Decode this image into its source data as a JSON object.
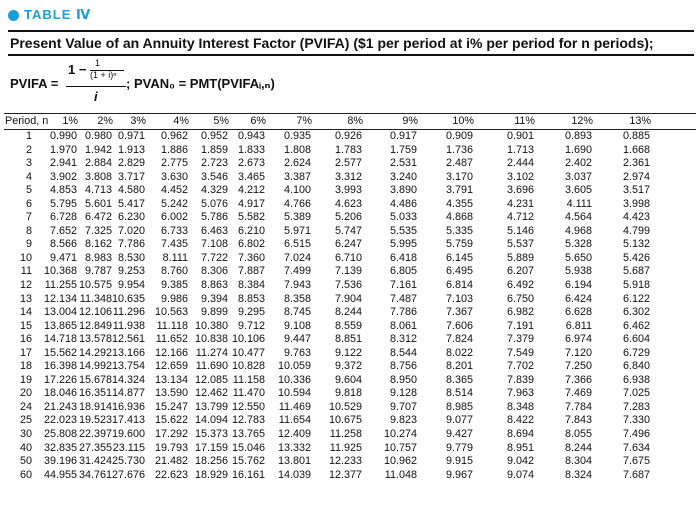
{
  "header": {
    "table_label": "TABLE Ⅳ"
  },
  "title": "Present Value of an Annuity Interest Factor (PVIFA) ($1 per period at i% per period for n periods);",
  "formula": {
    "lhs": "PVIFA =",
    "num_one": "1 −",
    "num_inner_num": "1",
    "num_inner_den": "(1 + i)ⁿ",
    "den": "i",
    "rest": "; PVAN₀ = PMT(PVIFAᵢ,ₙ)"
  },
  "table": {
    "headers": [
      "Period, n",
      "1%",
      "2%",
      "3%",
      "4%",
      "5%",
      "6%",
      "7%",
      "8%",
      "9%",
      "10%",
      "11%",
      "12%",
      "13%"
    ],
    "rows": [
      [
        "1",
        "0.990",
        "0.980",
        "0.971",
        "0.962",
        "0.952",
        "0.943",
        "0.935",
        "0.926",
        "0.917",
        "0.909",
        "0.901",
        "0.893",
        "0.885"
      ],
      [
        "2",
        "1.970",
        "1.942",
        "1.913",
        "1.886",
        "1.859",
        "1.833",
        "1.808",
        "1.783",
        "1.759",
        "1.736",
        "1.713",
        "1.690",
        "1.668"
      ],
      [
        "3",
        "2.941",
        "2.884",
        "2.829",
        "2.775",
        "2.723",
        "2.673",
        "2.624",
        "2.577",
        "2.531",
        "2.487",
        "2.444",
        "2.402",
        "2.361"
      ],
      [
        "4",
        "3.902",
        "3.808",
        "3.717",
        "3.630",
        "3.546",
        "3.465",
        "3.387",
        "3.312",
        "3.240",
        "3.170",
        "3.102",
        "3.037",
        "2.974"
      ],
      [
        "5",
        "4.853",
        "4.713",
        "4.580",
        "4.452",
        "4.329",
        "4.212",
        "4.100",
        "3.993",
        "3.890",
        "3.791",
        "3.696",
        "3.605",
        "3.517"
      ],
      [
        "6",
        "5.795",
        "5.601",
        "5.417",
        "5.242",
        "5.076",
        "4.917",
        "4.766",
        "4.623",
        "4.486",
        "4.355",
        "4.231",
        "4.111",
        "3.998"
      ],
      [
        "7",
        "6.728",
        "6.472",
        "6.230",
        "6.002",
        "5.786",
        "5.582",
        "5.389",
        "5.206",
        "5.033",
        "4.868",
        "4.712",
        "4.564",
        "4.423"
      ],
      [
        "8",
        "7.652",
        "7.325",
        "7.020",
        "6.733",
        "6.463",
        "6.210",
        "5.971",
        "5.747",
        "5.535",
        "5.335",
        "5.146",
        "4.968",
        "4.799"
      ],
      [
        "9",
        "8.566",
        "8.162",
        "7.786",
        "7.435",
        "7.108",
        "6.802",
        "6.515",
        "6.247",
        "5.995",
        "5.759",
        "5.537",
        "5.328",
        "5.132"
      ],
      [
        "10",
        "9.471",
        "8.983",
        "8.530",
        "8.111",
        "7.722",
        "7.360",
        "7.024",
        "6.710",
        "6.418",
        "6.145",
        "5.889",
        "5.650",
        "5.426"
      ],
      [
        "11",
        "10.368",
        "9.787",
        "9.253",
        "8.760",
        "8.306",
        "7.887",
        "7.499",
        "7.139",
        "6.805",
        "6.495",
        "6.207",
        "5.938",
        "5.687"
      ],
      [
        "12",
        "11.255",
        "10.575",
        "9.954",
        "9.385",
        "8.863",
        "8.384",
        "7.943",
        "7.536",
        "7.161",
        "6.814",
        "6.492",
        "6.194",
        "5.918"
      ],
      [
        "13",
        "12.134",
        "11.348",
        "10.635",
        "9.986",
        "9.394",
        "8.853",
        "8.358",
        "7.904",
        "7.487",
        "7.103",
        "6.750",
        "6.424",
        "6.122"
      ],
      [
        "14",
        "13.004",
        "12.106",
        "11.296",
        "10.563",
        "9.899",
        "9.295",
        "8.745",
        "8.244",
        "7.786",
        "7.367",
        "6.982",
        "6.628",
        "6.302"
      ],
      [
        "15",
        "13.865",
        "12.849",
        "11.938",
        "11.118",
        "10.380",
        "9.712",
        "9.108",
        "8.559",
        "8.061",
        "7.606",
        "7.191",
        "6.811",
        "6.462"
      ],
      [
        "16",
        "14.718",
        "13.578",
        "12.561",
        "11.652",
        "10.838",
        "10.106",
        "9.447",
        "8.851",
        "8.312",
        "7.824",
        "7.379",
        "6.974",
        "6.604"
      ],
      [
        "17",
        "15.562",
        "14.292",
        "13.166",
        "12.166",
        "11.274",
        "10.477",
        "9.763",
        "9.122",
        "8.544",
        "8.022",
        "7.549",
        "7.120",
        "6.729"
      ],
      [
        "18",
        "16.398",
        "14.992",
        "13.754",
        "12.659",
        "11.690",
        "10.828",
        "10.059",
        "9.372",
        "8.756",
        "8.201",
        "7.702",
        "7.250",
        "6.840"
      ],
      [
        "19",
        "17.226",
        "15.678",
        "14.324",
        "13.134",
        "12.085",
        "11.158",
        "10.336",
        "9.604",
        "8.950",
        "8.365",
        "7.839",
        "7.366",
        "6.938"
      ],
      [
        "20",
        "18.046",
        "16.351",
        "14.877",
        "13.590",
        "12.462",
        "11.470",
        "10.594",
        "9.818",
        "9.128",
        "8.514",
        "7.963",
        "7.469",
        "7.025"
      ],
      [
        "24",
        "21.243",
        "18.914",
        "16.936",
        "15.247",
        "13.799",
        "12.550",
        "11.469",
        "10.529",
        "9.707",
        "8.985",
        "8.348",
        "7.784",
        "7.283"
      ],
      [
        "25",
        "22.023",
        "19.523",
        "17.413",
        "15.622",
        "14.094",
        "12.783",
        "11.654",
        "10.675",
        "9.823",
        "9.077",
        "8.422",
        "7.843",
        "7.330"
      ],
      [
        "30",
        "25.808",
        "22.397",
        "19.600",
        "17.292",
        "15.373",
        "13.765",
        "12.409",
        "11.258",
        "10.274",
        "9.427",
        "8.694",
        "8.055",
        "7.496"
      ],
      [
        "40",
        "32.835",
        "27.355",
        "23.115",
        "19.793",
        "17.159",
        "15.046",
        "13.332",
        "11.925",
        "10.757",
        "9.779",
        "8.951",
        "8.244",
        "7.634"
      ],
      [
        "50",
        "39.196",
        "31.424",
        "25.730",
        "21.482",
        "18.256",
        "15.762",
        "13.801",
        "12.233",
        "10.962",
        "9.915",
        "9.042",
        "8.304",
        "7.675"
      ],
      [
        "60",
        "44.955",
        "34.761",
        "27.676",
        "22.623",
        "18.929",
        "16.161",
        "14.039",
        "12.377",
        "11.048",
        "9.967",
        "9.074",
        "8.324",
        "7.687"
      ]
    ]
  }
}
